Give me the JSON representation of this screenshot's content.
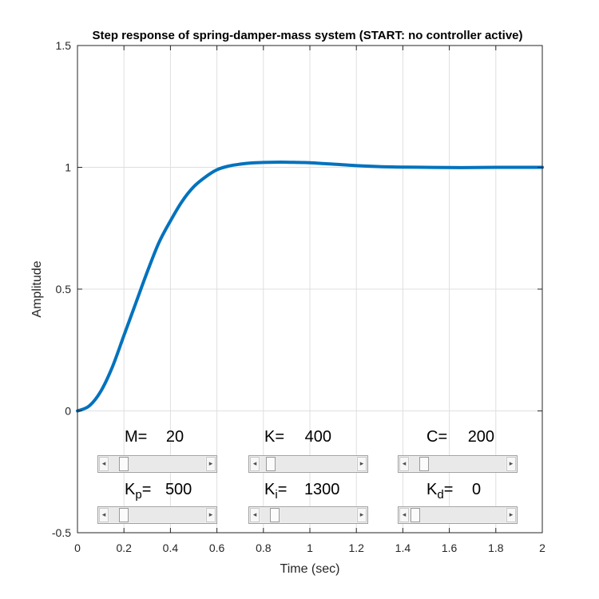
{
  "chart_data": {
    "type": "line",
    "title": "Step response of spring-damper-mass system (START: no controller active)",
    "xlabel": "Time (sec)",
    "ylabel": "Amplitude",
    "xlim": [
      0,
      2
    ],
    "ylim": [
      -0.5,
      1.5
    ],
    "xticks": [
      0,
      0.2,
      0.4,
      0.6,
      0.8,
      1,
      1.2,
      1.4,
      1.6,
      1.8,
      2
    ],
    "xtick_labels": [
      "0",
      "0.2",
      "0.4",
      "0.6",
      "0.8",
      "1",
      "1.2",
      "1.4",
      "1.6",
      "1.8",
      "2"
    ],
    "yticks": [
      -0.5,
      0,
      0.5,
      1,
      1.5
    ],
    "ytick_labels": [
      "-0.5",
      "0",
      "0.5",
      "1",
      "1.5"
    ],
    "grid": true,
    "series": [
      {
        "color": "#0072BD",
        "x": [
          0,
          0.05,
          0.1,
          0.15,
          0.2,
          0.25,
          0.3,
          0.35,
          0.4,
          0.45,
          0.5,
          0.55,
          0.6,
          0.65,
          0.7,
          0.75,
          0.8,
          0.85,
          0.9,
          0.95,
          1.0,
          1.1,
          1.2,
          1.3,
          1.4,
          1.5,
          1.6,
          1.7,
          1.8,
          1.9,
          2.0
        ],
        "y": [
          0,
          0.02,
          0.08,
          0.18,
          0.31,
          0.44,
          0.57,
          0.69,
          0.78,
          0.86,
          0.92,
          0.96,
          0.99,
          1.005,
          1.013,
          1.018,
          1.02,
          1.021,
          1.021,
          1.02,
          1.019,
          1.013,
          1.007,
          1.003,
          1.001,
          1.0,
          0.999,
          0.999,
          1.0,
          1.0,
          1.0
        ]
      }
    ]
  },
  "controls": [
    {
      "name": "M",
      "label": "M=",
      "value": "20",
      "position": 0.1
    },
    {
      "name": "K",
      "label": "K=",
      "value": "400",
      "position": 0.06
    },
    {
      "name": "C",
      "label": "C=",
      "value": "200",
      "position": 0.1
    },
    {
      "name": "Kp",
      "label_main": "K",
      "label_sub": "p",
      "label_eq": "=",
      "value": "500",
      "position": 0.1
    },
    {
      "name": "Ki",
      "label_main": "K",
      "label_sub": "i",
      "label_eq": "=",
      "value": "1300",
      "position": 0.1
    },
    {
      "name": "Kd",
      "label_main": "K",
      "label_sub": "d",
      "label_eq": "=",
      "value": "0",
      "position": 0.0
    }
  ]
}
